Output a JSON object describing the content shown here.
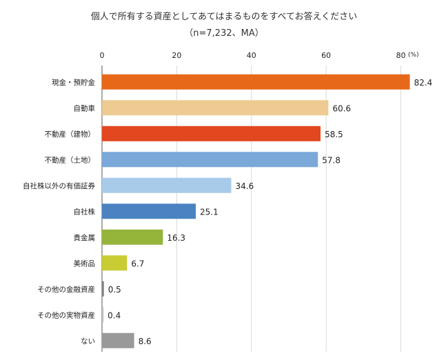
{
  "chart_data": {
    "type": "bar",
    "orientation": "horizontal",
    "title": "個人で所有する資産としてあてはまるものをすべてお答えください",
    "subtitle": "（n=7,232、MA）",
    "unit_label": "(%)",
    "xlim": [
      0,
      90
    ],
    "xticks": [
      "0",
      "20",
      "40",
      "60",
      "80"
    ],
    "grid": true,
    "legend": "none",
    "categories": [
      "現金・預貯金",
      "自動車",
      "不動産（建物）",
      "不動産（土地）",
      "自社株以外の有価証券",
      "自社株",
      "貴金属",
      "美術品",
      "その他の金融資産",
      "その他の実物資産",
      "ない"
    ],
    "values": [
      82.4,
      60.6,
      58.5,
      57.8,
      34.6,
      25.1,
      16.3,
      6.7,
      0.5,
      0.4,
      8.6
    ],
    "value_labels": [
      "82.4",
      "60.6",
      "58.5",
      "57.8",
      "34.6",
      "25.1",
      "16.3",
      "6.7",
      "0.5",
      "0.4",
      "8.6"
    ],
    "colors": [
      "#E8681A",
      "#EDCB92",
      "#E2471F",
      "#7AA8D8",
      "#A9CBEA",
      "#4A83C0",
      "#94B43A",
      "#C9CD33",
      "#7F7F7F",
      "#BFBFBF",
      "#999999"
    ]
  }
}
